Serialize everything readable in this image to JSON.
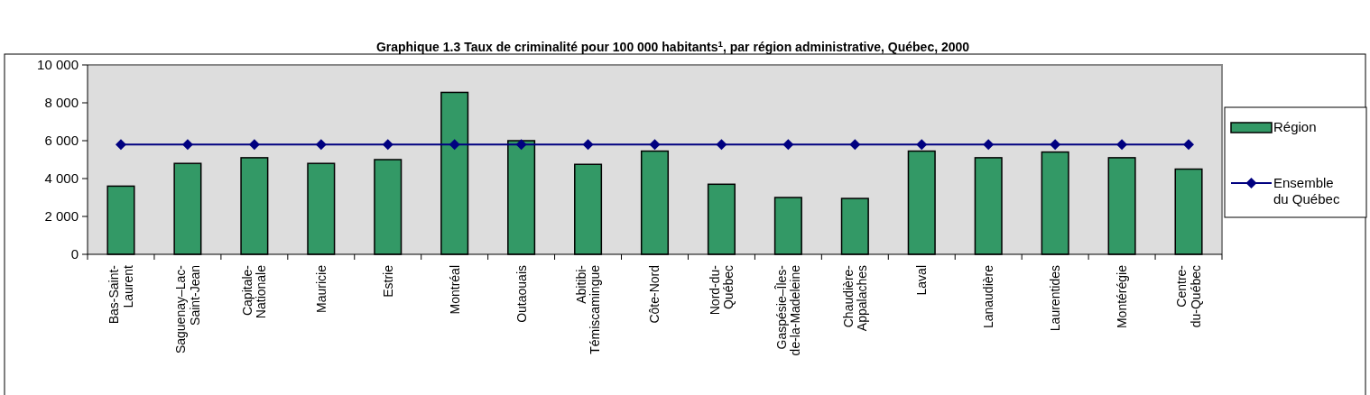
{
  "chart_data": {
    "type": "bar",
    "title": "Graphique 1.3  Taux de criminalité pour 100 000 habitants$^{1}$, par région administrative, Québec, 2000",
    "categories": [
      "Bas-Saint-Laurent",
      "Saguenay–Lac-Saint-Jean",
      "Capitale-Nationale",
      "Mauricie",
      "Estrie",
      "Montréal",
      "Outaouais",
      "Abitibi-Témiscamingue",
      "Côte-Nord",
      "Nord-du-Québec",
      "Gaspésie–Îles-de-la-Madeleine",
      "Chaudière-Appalaches",
      "Laval",
      "Lanaudière",
      "Laurentides",
      "Montérégie",
      "Centre-du-Québec"
    ],
    "series": [
      {
        "name": "Région",
        "color": "#339966",
        "values": [
          3600,
          4800,
          5100,
          4800,
          5000,
          8550,
          6000,
          4750,
          5450,
          3700,
          3000,
          2950,
          5450,
          5100,
          5400,
          5100,
          4500
        ]
      },
      {
        "name": "Ensemble du Québec",
        "type": "line",
        "color": "#000080",
        "marker": "diamond",
        "values": [
          5800,
          5800,
          5800,
          5800,
          5800,
          5800,
          5800,
          5800,
          5800,
          5800,
          5800,
          5800,
          5800,
          5800,
          5800,
          5800,
          5800
        ]
      }
    ],
    "ylim": [
      0,
      10000
    ],
    "yticks": [
      0,
      {
        "value": 2000,
        "label": "2 000"
      },
      {
        "value": 4000,
        "label": "4 000"
      },
      {
        "value": 6000,
        "label": "6 000"
      },
      {
        "value": 8000,
        "label": "8 000"
      },
      {
        "value": 10000,
        "label": "10 000"
      }
    ],
    "grid": false,
    "legend": "right"
  }
}
